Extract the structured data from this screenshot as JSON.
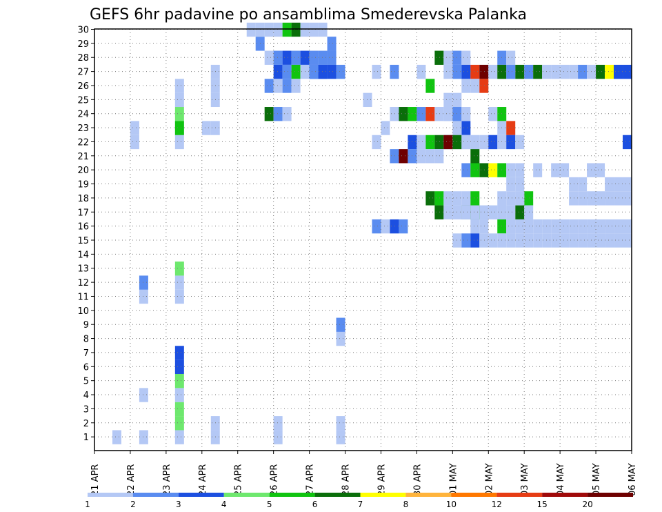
{
  "chart_data": {
    "type": "heatmap",
    "title": "GEFS 6hr padavine po ansamblima Smederevska Palanka",
    "xlabel": "",
    "ylabel": "",
    "x_tick_labels": [
      "21 APR",
      "22 APR",
      "23 APR",
      "24 APR",
      "25 APR",
      "26 APR",
      "27 APR",
      "28 APR",
      "29 APR",
      "30 APR",
      "01 MAY",
      "02 MAY",
      "03 MAY",
      "04 MAY",
      "05 MAY",
      "06 MAY"
    ],
    "y_tick_labels": [
      "1",
      "2",
      "3",
      "4",
      "5",
      "6",
      "7",
      "8",
      "9",
      "10",
      "11",
      "12",
      "13",
      "14",
      "15",
      "16",
      "17",
      "18",
      "19",
      "20",
      "21",
      "22",
      "23",
      "24",
      "25",
      "26",
      "27",
      "28",
      "29",
      "30"
    ],
    "x_range": [
      0,
      60
    ],
    "y_range": [
      0,
      30
    ],
    "grid": true,
    "legend_placement": "bottom",
    "legend": {
      "labels": [
        "1",
        "2",
        "3",
        "4",
        "5",
        "6",
        "7",
        "8",
        "10",
        "12",
        "15",
        "20"
      ],
      "colors": [
        "#b4c8f5",
        "#5a8cf0",
        "#1c4fe0",
        "#6ee86e",
        "#10c410",
        "#0a6e0a",
        "#ffff00",
        "#ffb43c",
        "#ff7800",
        "#e63c14",
        "#a00a0a",
        "#6e0000"
      ]
    },
    "cells": [
      [
        2,
        1,
        1
      ],
      [
        5,
        1,
        1
      ],
      [
        5,
        4,
        1
      ],
      [
        5,
        11,
        1
      ],
      [
        5,
        12,
        2
      ],
      [
        9,
        11,
        1
      ],
      [
        9,
        12,
        1
      ],
      [
        9,
        22,
        1
      ],
      [
        9,
        23,
        1
      ],
      [
        9,
        1,
        1
      ],
      [
        9,
        2,
        4
      ],
      [
        9,
        3,
        4
      ],
      [
        9,
        4,
        1
      ],
      [
        9,
        5,
        4
      ],
      [
        9,
        6,
        3
      ],
      [
        9,
        7,
        3
      ],
      [
        9,
        13,
        4
      ],
      [
        9,
        24,
        4
      ],
      [
        9,
        25,
        1
      ],
      [
        9,
        26,
        1
      ],
      [
        13,
        1,
        1
      ],
      [
        13,
        2,
        1
      ],
      [
        20,
        1,
        1
      ],
      [
        20,
        2,
        1
      ],
      [
        27,
        1,
        1
      ],
      [
        27,
        2,
        1
      ],
      [
        27,
        8,
        1
      ],
      [
        27,
        9,
        2
      ],
      [
        30,
        25,
        1
      ],
      [
        31,
        16,
        2
      ],
      [
        32,
        16,
        1
      ],
      [
        33,
        16,
        3
      ],
      [
        34,
        16,
        2
      ],
      [
        26,
        28,
        1
      ],
      [
        26,
        29,
        2
      ],
      [
        13,
        25,
        1
      ],
      [
        13,
        26,
        1
      ],
      [
        13,
        27,
        1
      ],
      [
        17,
        30,
        1
      ],
      [
        18,
        29,
        2
      ],
      [
        18,
        30,
        1
      ],
      [
        19,
        30,
        1
      ],
      [
        20,
        30,
        1
      ],
      [
        21,
        30,
        5
      ],
      [
        22,
        30,
        6
      ],
      [
        23,
        30,
        1
      ],
      [
        24,
        30,
        1
      ],
      [
        25,
        30,
        1
      ],
      [
        19,
        28,
        1
      ],
      [
        20,
        28,
        2
      ],
      [
        21,
        28,
        3
      ],
      [
        22,
        28,
        2
      ],
      [
        23,
        28,
        3
      ],
      [
        24,
        28,
        2
      ],
      [
        25,
        28,
        2
      ],
      [
        26,
        28,
        2
      ],
      [
        31,
        27,
        1
      ],
      [
        36,
        27,
        1
      ],
      [
        41,
        27,
        1
      ],
      [
        33,
        27,
        2
      ],
      [
        38,
        28,
        6
      ],
      [
        39,
        28,
        1
      ],
      [
        40,
        28,
        2
      ],
      [
        41,
        28,
        1
      ],
      [
        45,
        28,
        2
      ],
      [
        46,
        28,
        1
      ],
      [
        46,
        27,
        1
      ],
      [
        47,
        27,
        6
      ],
      [
        48,
        27,
        2
      ],
      [
        49,
        27,
        6
      ],
      [
        50,
        27,
        1
      ],
      [
        51,
        27,
        1
      ],
      [
        52,
        27,
        1
      ],
      [
        53,
        27,
        1
      ],
      [
        54,
        27,
        2
      ],
      [
        55,
        27,
        1
      ],
      [
        56,
        27,
        6
      ],
      [
        57,
        27,
        7
      ],
      [
        58,
        27,
        3
      ],
      [
        59,
        27,
        3
      ],
      [
        20,
        27,
        3
      ],
      [
        21,
        27,
        2
      ],
      [
        22,
        27,
        5
      ],
      [
        23,
        27,
        1
      ],
      [
        24,
        27,
        3
      ],
      [
        25,
        27,
        2
      ],
      [
        26,
        27,
        3
      ],
      [
        27,
        27,
        2
      ],
      [
        39,
        27,
        1
      ],
      [
        40,
        27,
        2
      ],
      [
        41,
        27,
        3
      ],
      [
        42,
        27,
        10
      ],
      [
        43,
        27,
        12
      ],
      [
        44,
        27,
        1
      ],
      [
        45,
        27,
        6
      ],
      [
        46,
        27,
        2
      ],
      [
        19,
        26,
        2
      ],
      [
        20,
        26,
        1
      ],
      [
        21,
        26,
        2
      ],
      [
        41,
        26,
        1
      ],
      [
        42,
        26,
        1
      ],
      [
        43,
        26,
        10
      ],
      [
        24,
        27,
        2
      ],
      [
        25,
        27,
        3
      ],
      [
        22,
        26,
        1
      ],
      [
        12,
        23,
        1
      ],
      [
        13,
        23,
        1
      ],
      [
        37,
        26,
        5
      ],
      [
        39,
        25,
        1
      ],
      [
        40,
        25,
        1
      ],
      [
        39,
        24,
        1
      ],
      [
        41,
        23,
        3
      ],
      [
        42,
        22,
        1
      ],
      [
        44,
        24,
        1
      ],
      [
        45,
        24,
        5
      ],
      [
        45,
        23,
        1
      ],
      [
        46,
        23,
        10
      ],
      [
        40,
        23,
        1
      ],
      [
        39,
        22,
        2
      ],
      [
        40,
        22,
        1
      ],
      [
        41,
        22,
        1
      ],
      [
        43,
        22,
        1
      ],
      [
        44,
        22,
        1
      ],
      [
        59,
        22,
        3
      ],
      [
        33,
        24,
        1
      ],
      [
        34,
        24,
        6
      ],
      [
        35,
        24,
        5
      ],
      [
        36,
        24,
        2
      ],
      [
        37,
        24,
        10
      ],
      [
        38,
        24,
        1
      ],
      [
        39,
        24,
        1
      ],
      [
        40,
        24,
        2
      ],
      [
        41,
        24,
        1
      ],
      [
        19,
        24,
        6
      ],
      [
        20,
        24,
        2
      ],
      [
        21,
        24,
        1
      ],
      [
        35,
        22,
        3
      ],
      [
        36,
        22,
        1
      ],
      [
        37,
        22,
        5
      ],
      [
        38,
        22,
        6
      ],
      [
        39,
        22,
        12
      ],
      [
        40,
        22,
        6
      ],
      [
        41,
        22,
        1
      ],
      [
        44,
        22,
        3
      ],
      [
        45,
        22,
        1
      ],
      [
        46,
        22,
        3
      ],
      [
        47,
        22,
        1
      ],
      [
        4,
        22,
        1
      ],
      [
        4,
        23,
        1
      ],
      [
        9,
        23,
        5
      ],
      [
        32,
        23,
        1
      ],
      [
        31,
        22,
        1
      ],
      [
        33,
        21,
        2
      ],
      [
        34,
        21,
        12
      ],
      [
        35,
        21,
        2
      ],
      [
        36,
        21,
        1
      ],
      [
        37,
        21,
        1
      ],
      [
        38,
        21,
        1
      ],
      [
        42,
        21,
        6
      ],
      [
        43,
        20,
        6
      ],
      [
        41,
        20,
        2
      ],
      [
        42,
        20,
        5
      ],
      [
        44,
        20,
        7
      ],
      [
        45,
        20,
        5
      ],
      [
        46,
        20,
        1
      ],
      [
        47,
        20,
        1
      ],
      [
        46,
        19,
        1
      ],
      [
        47,
        19,
        1
      ],
      [
        48,
        18,
        5
      ],
      [
        45,
        18,
        1
      ],
      [
        46,
        18,
        1
      ],
      [
        47,
        18,
        1
      ],
      [
        49,
        20,
        1
      ],
      [
        51,
        20,
        1
      ],
      [
        52,
        20,
        1
      ],
      [
        53,
        19,
        1
      ],
      [
        54,
        19,
        1
      ],
      [
        55,
        20,
        1
      ],
      [
        56,
        20,
        1
      ],
      [
        57,
        19,
        1
      ],
      [
        58,
        19,
        1
      ],
      [
        59,
        19,
        1
      ],
      [
        58,
        18,
        1
      ],
      [
        59,
        18,
        1
      ],
      [
        53,
        18,
        1
      ],
      [
        54,
        18,
        1
      ],
      [
        55,
        18,
        1
      ],
      [
        56,
        18,
        1
      ],
      [
        57,
        18,
        1
      ],
      [
        43,
        17,
        1
      ],
      [
        41,
        17,
        6
      ],
      [
        42,
        17,
        5
      ],
      [
        44,
        17,
        1
      ],
      [
        45,
        17,
        1
      ],
      [
        47,
        17,
        6
      ],
      [
        48,
        17,
        1
      ],
      [
        45,
        16,
        5
      ],
      [
        46,
        16,
        1
      ],
      [
        47,
        16,
        1
      ],
      [
        48,
        16,
        1
      ],
      [
        49,
        16,
        1
      ],
      [
        50,
        16,
        1
      ],
      [
        51,
        16,
        1
      ],
      [
        52,
        16,
        1
      ],
      [
        53,
        16,
        1
      ],
      [
        54,
        16,
        1
      ],
      [
        55,
        16,
        1
      ],
      [
        56,
        16,
        1
      ],
      [
        57,
        16,
        1
      ],
      [
        58,
        16,
        1
      ],
      [
        59,
        16,
        1
      ],
      [
        37,
        18,
        6
      ],
      [
        38,
        18,
        5
      ],
      [
        39,
        18,
        1
      ],
      [
        40,
        18,
        1
      ],
      [
        41,
        18,
        1
      ],
      [
        42,
        18,
        5
      ],
      [
        47,
        18,
        1
      ],
      [
        38,
        17,
        6
      ],
      [
        39,
        17,
        1
      ],
      [
        40,
        17,
        1
      ],
      [
        41,
        17,
        1
      ],
      [
        42,
        17,
        1
      ],
      [
        45,
        17,
        1
      ],
      [
        46,
        17,
        1
      ],
      [
        42,
        16,
        1
      ],
      [
        43,
        16,
        1
      ],
      [
        46,
        16,
        1
      ],
      [
        40,
        15,
        1
      ],
      [
        41,
        15,
        2
      ],
      [
        42,
        15,
        3
      ],
      [
        43,
        15,
        1
      ],
      [
        44,
        15,
        1
      ],
      [
        45,
        15,
        1
      ],
      [
        46,
        15,
        1
      ],
      [
        47,
        15,
        1
      ],
      [
        48,
        15,
        1
      ],
      [
        49,
        15,
        1
      ],
      [
        50,
        15,
        1
      ],
      [
        51,
        15,
        1
      ],
      [
        52,
        15,
        1
      ],
      [
        53,
        15,
        1
      ],
      [
        54,
        15,
        1
      ],
      [
        55,
        15,
        1
      ],
      [
        56,
        15,
        1
      ],
      [
        57,
        15,
        1
      ],
      [
        58,
        15,
        1
      ],
      [
        59,
        15,
        1
      ]
    ]
  }
}
